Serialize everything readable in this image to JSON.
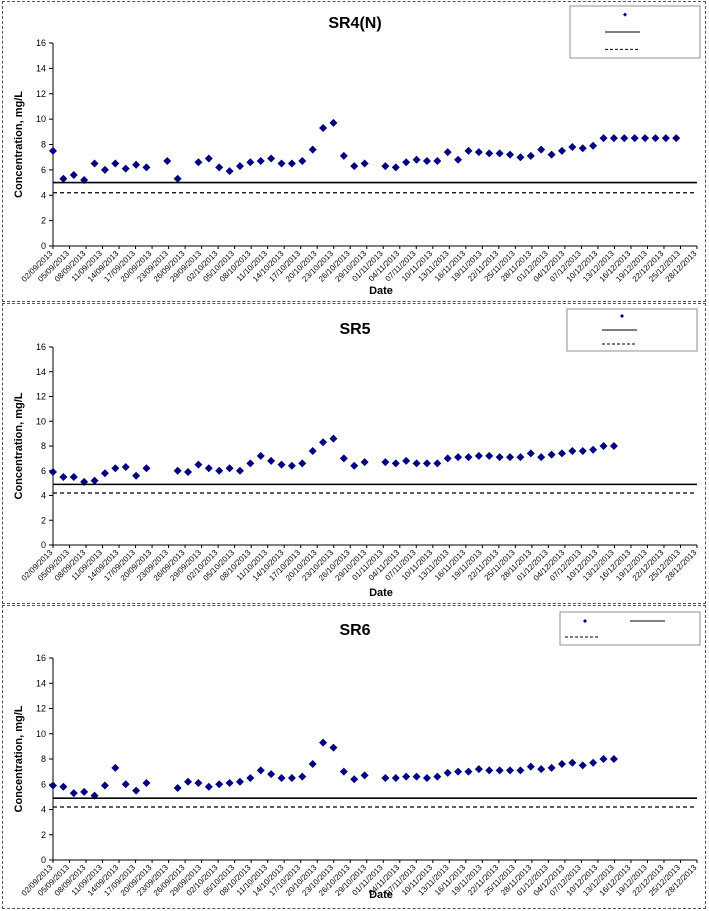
{
  "chart_data": [
    {
      "type": "scatter",
      "title": "SR4(N)",
      "xlabel": "Date",
      "ylabel": "Concentration, mg/L",
      "ylim": [
        0,
        16
      ],
      "yticks": [
        0,
        2,
        4,
        6,
        8,
        10,
        12,
        14,
        16
      ],
      "x_ticks": [
        "02/09/2013",
        "05/09/2013",
        "08/09/2013",
        "11/09/2013",
        "14/09/2013",
        "17/09/2013",
        "20/09/2013",
        "23/09/2013",
        "26/09/2013",
        "29/09/2013",
        "02/10/2013",
        "05/10/2013",
        "08/10/2013",
        "11/10/2013",
        "14/10/2013",
        "17/10/2013",
        "20/10/2013",
        "23/10/2013",
        "26/10/2013",
        "29/10/2013",
        "01/11/2013",
        "04/11/2013",
        "07/11/2013",
        "10/11/2013",
        "13/11/2013",
        "16/11/2013",
        "19/11/2013",
        "22/11/2013",
        "25/11/2013",
        "28/11/2013",
        "01/12/2013",
        "04/12/2013",
        "07/12/2013",
        "10/12/2013",
        "13/12/2013",
        "16/12/2013",
        "19/12/2013",
        "22/12/2013",
        "25/12/2013",
        "28/12/2013"
      ],
      "legend_position": "top-right",
      "series": [
        {
          "kind": "points",
          "color": "#000080",
          "x": [
            0,
            1,
            2,
            3,
            4,
            5,
            6,
            7,
            8,
            9,
            11,
            12,
            14,
            15,
            16,
            17,
            18,
            19,
            20,
            21,
            22,
            23,
            24,
            25,
            26,
            27,
            28,
            29,
            30,
            32,
            33,
            34,
            35,
            36,
            37,
            38,
            39,
            40,
            41,
            42,
            43,
            44,
            45,
            46,
            47,
            48,
            49,
            50,
            51,
            52,
            53,
            54,
            55,
            56,
            57,
            58,
            59,
            60
          ],
          "y": [
            7.5,
            5.3,
            5.6,
            5.2,
            6.5,
            6.0,
            6.5,
            6.1,
            6.4,
            6.2,
            6.7,
            5.3,
            6.6,
            6.9,
            6.2,
            5.9,
            6.3,
            6.6,
            6.7,
            6.9,
            6.5,
            6.5,
            6.7,
            7.6,
            9.3,
            9.7,
            7.1,
            6.3,
            6.5,
            6.3,
            6.2,
            6.6,
            6.8,
            6.7,
            6.7,
            7.4,
            6.8,
            7.5,
            7.4,
            7.3,
            7.3,
            7.2,
            7.0,
            7.1,
            7.6,
            7.2,
            7.5,
            7.8,
            7.7,
            7.9,
            8.5,
            8.5,
            8.5,
            8.5,
            8.5,
            8.5,
            8.5,
            8.5
          ]
        },
        {
          "kind": "line",
          "value": 5.0,
          "style": "solid"
        },
        {
          "kind": "line",
          "value": 4.2,
          "style": "dashed"
        }
      ]
    },
    {
      "type": "scatter",
      "title": "SR5",
      "xlabel": "Date",
      "ylabel": "Concentration, mg/L",
      "ylim": [
        0,
        16
      ],
      "yticks": [
        0,
        2,
        4,
        6,
        8,
        10,
        12,
        14,
        16
      ],
      "x_ticks": [
        "02/09/2013",
        "05/09/2013",
        "08/09/2013",
        "11/09/2013",
        "14/09/2013",
        "17/09/2013",
        "20/09/2013",
        "23/09/2013",
        "26/09/2013",
        "29/09/2013",
        "02/10/2013",
        "05/10/2013",
        "08/10/2013",
        "11/10/2013",
        "14/10/2013",
        "17/10/2013",
        "20/10/2013",
        "23/10/2013",
        "26/10/2013",
        "29/10/2013",
        "01/11/2013",
        "04/11/2013",
        "07/11/2013",
        "10/11/2013",
        "13/11/2013",
        "16/11/2013",
        "19/11/2013",
        "22/11/2013",
        "25/11/2013",
        "28/11/2013",
        "01/12/2013",
        "04/12/2013",
        "07/12/2013",
        "10/12/2013",
        "13/12/2013",
        "16/12/2013",
        "19/12/2013",
        "22/12/2013",
        "25/12/2013",
        "28/12/2013"
      ],
      "legend_position": "top-right",
      "series": [
        {
          "kind": "points",
          "color": "#000080",
          "x": [
            0,
            1,
            2,
            3,
            4,
            5,
            6,
            7,
            8,
            9,
            12,
            13,
            14,
            15,
            16,
            17,
            18,
            19,
            20,
            21,
            22,
            23,
            24,
            25,
            26,
            27,
            28,
            29,
            30,
            32,
            33,
            34,
            35,
            36,
            37,
            38,
            39,
            40,
            41,
            42,
            43,
            44,
            45,
            46,
            47,
            48,
            49,
            50,
            51,
            52,
            53,
            54
          ],
          "y": [
            5.9,
            5.5,
            5.5,
            5.1,
            5.2,
            5.8,
            6.2,
            6.3,
            5.6,
            6.2,
            6.0,
            5.9,
            6.5,
            6.2,
            6.0,
            6.2,
            6.0,
            6.6,
            7.2,
            6.8,
            6.5,
            6.4,
            6.6,
            7.6,
            8.3,
            8.6,
            7.0,
            6.4,
            6.7,
            6.7,
            6.6,
            6.8,
            6.6,
            6.6,
            6.6,
            7.0,
            7.1,
            7.1,
            7.2,
            7.2,
            7.1,
            7.1,
            7.1,
            7.4,
            7.1,
            7.3,
            7.4,
            7.6,
            7.6,
            7.7,
            8.0,
            8.0
          ]
        },
        {
          "kind": "line",
          "value": 4.9,
          "style": "solid"
        },
        {
          "kind": "line",
          "value": 4.2,
          "style": "dashed"
        }
      ]
    },
    {
      "type": "scatter",
      "title": "SR6",
      "xlabel": "Date",
      "ylabel": "Concentration, mg/L",
      "ylim": [
        0,
        16
      ],
      "yticks": [
        0,
        2,
        4,
        6,
        8,
        10,
        12,
        14,
        16
      ],
      "x_ticks": [
        "02/09/2013",
        "05/09/2013",
        "08/09/2013",
        "11/09/2013",
        "14/09/2013",
        "17/09/2013",
        "20/09/2013",
        "23/09/2013",
        "26/09/2013",
        "29/09/2013",
        "02/10/2013",
        "05/10/2013",
        "08/10/2013",
        "11/10/2013",
        "14/10/2013",
        "17/10/2013",
        "20/10/2013",
        "23/10/2013",
        "26/10/2013",
        "29/10/2013",
        "01/11/2013",
        "04/11/2013",
        "07/11/2013",
        "10/11/2013",
        "13/11/2013",
        "16/11/2013",
        "19/11/2013",
        "22/11/2013",
        "25/11/2013",
        "28/11/2013",
        "01/12/2013",
        "04/12/2013",
        "07/12/2013",
        "10/12/2013",
        "13/12/2013",
        "16/12/2013",
        "19/12/2013",
        "22/12/2013",
        "25/12/2013",
        "28/12/2013"
      ],
      "legend_position": "top-right",
      "series": [
        {
          "kind": "points",
          "color": "#000080",
          "x": [
            0,
            1,
            2,
            3,
            4,
            5,
            6,
            7,
            8,
            9,
            12,
            13,
            14,
            15,
            16,
            17,
            18,
            19,
            20,
            21,
            22,
            23,
            24,
            25,
            26,
            27,
            28,
            29,
            30,
            32,
            33,
            34,
            35,
            36,
            37,
            38,
            39,
            40,
            41,
            42,
            43,
            44,
            45,
            46,
            47,
            48,
            49,
            50,
            51,
            52,
            53,
            54
          ],
          "y": [
            5.9,
            5.8,
            5.3,
            5.4,
            5.1,
            5.9,
            7.3,
            6.0,
            5.5,
            6.1,
            5.7,
            6.2,
            6.1,
            5.8,
            6.0,
            6.1,
            6.2,
            6.5,
            7.1,
            6.8,
            6.5,
            6.5,
            6.6,
            7.6,
            9.3,
            8.9,
            7.0,
            6.4,
            6.7,
            6.5,
            6.5,
            6.6,
            6.6,
            6.5,
            6.6,
            6.9,
            7.0,
            7.0,
            7.2,
            7.1,
            7.1,
            7.1,
            7.1,
            7.4,
            7.2,
            7.3,
            7.6,
            7.7,
            7.5,
            7.7,
            8.0,
            8.0
          ]
        },
        {
          "kind": "line",
          "value": 4.9,
          "style": "solid"
        },
        {
          "kind": "line",
          "value": 4.2,
          "style": "dashed"
        }
      ]
    }
  ]
}
